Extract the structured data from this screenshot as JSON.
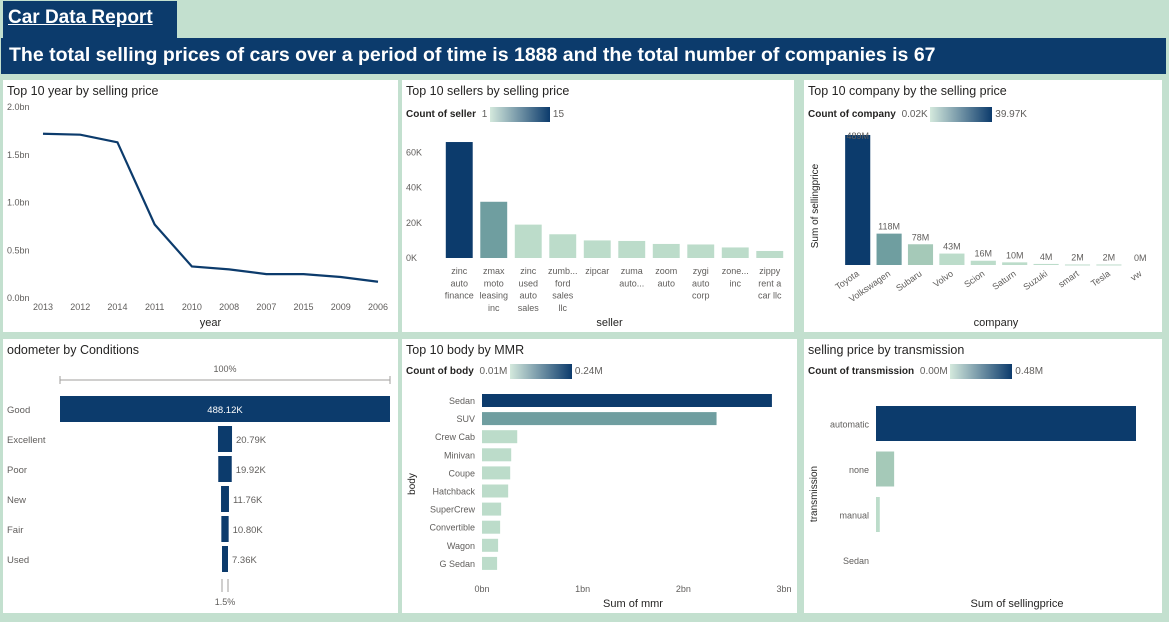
{
  "header": {
    "title": "Car Data Report",
    "banner": "The total selling prices of cars over a period of time is 1888 and the total number of companies is 67"
  },
  "colors": {
    "navy": "#0c3b6c",
    "mid": "#6f9ea0",
    "light": "#bcdcca",
    "bg": "#c3e0cf"
  },
  "panels": {
    "year": {
      "title": "Top 10 year by selling price"
    },
    "sellers": {
      "title": "Top 10 sellers by selling price",
      "legend_label": "Count of seller",
      "legend_min": "1",
      "legend_max": "15"
    },
    "company": {
      "title": "Top 10 company by the selling price",
      "legend_label": "Count of company",
      "legend_min": "0.02K",
      "legend_max": "39.97K"
    },
    "odometer": {
      "title": "odometer by Conditions"
    },
    "body": {
      "title": "Top 10 body by MMR",
      "legend_label": "Count of body",
      "legend_min": "0.01M",
      "legend_max": "0.24M"
    },
    "transmission": {
      "title": "selling price by transmission",
      "legend_label": "Count of transmission",
      "legend_min": "0.00M",
      "legend_max": "0.48M"
    }
  },
  "chart_data": [
    {
      "id": "year",
      "type": "line",
      "title": "Top 10 year by selling price",
      "xlabel": "year",
      "ylabel": "",
      "categories": [
        "2013",
        "2012",
        "2014",
        "2011",
        "2010",
        "2008",
        "2007",
        "2015",
        "2009",
        "2006"
      ],
      "values": [
        1.72,
        1.71,
        1.63,
        0.77,
        0.33,
        0.3,
        0.25,
        0.25,
        0.22,
        0.17
      ],
      "ylim": [
        0,
        2.0
      ],
      "yticks": [
        "0.0bn",
        "0.5bn",
        "1.0bn",
        "1.5bn",
        "2.0bn"
      ],
      "color": "#0c3b6c"
    },
    {
      "id": "sellers",
      "type": "bar",
      "title": "Top 10 sellers by selling price",
      "xlabel": "seller",
      "categories": [
        "zinc auto finance",
        "zmax moto leasing inc",
        "zinc used auto sales",
        "zumb... ford sales llc",
        "zipcar",
        "zuma auto...",
        "zoom auto",
        "zygi auto corp",
        "zone... inc",
        "zippy rent a car llc"
      ],
      "category_lines": [
        [
          "zinc",
          "auto",
          "finance"
        ],
        [
          "zmax",
          "moto",
          "leasing",
          "inc"
        ],
        [
          "zinc",
          "used",
          "auto",
          "sales"
        ],
        [
          "zumb...",
          "ford",
          "sales",
          "llc"
        ],
        [
          "zipcar"
        ],
        [
          "zuma",
          "auto..."
        ],
        [
          "zoom",
          "auto"
        ],
        [
          "zygi",
          "auto",
          "corp"
        ],
        [
          "zone...",
          "inc"
        ],
        [
          "zippy",
          "rent a",
          "car llc"
        ]
      ],
      "values": [
        66000,
        32000,
        19000,
        13500,
        10000,
        9700,
        8000,
        7700,
        6000,
        4000
      ],
      "ylim": [
        0,
        70000
      ],
      "yticks": [
        "0K",
        "20K",
        "40K",
        "60K"
      ],
      "colors": [
        "#0c3b6c",
        "#6f9ea0",
        "#bcdcca",
        "#bcdcca",
        "#bcdcca",
        "#bcdcca",
        "#bcdcca",
        "#bcdcca",
        "#bcdcca",
        "#bcdcca"
      ]
    },
    {
      "id": "company",
      "type": "bar",
      "title": "Top 10 company by the selling price",
      "xlabel": "company",
      "ylabel": "Sum of sellingprice",
      "categories": [
        "Toyota",
        "Volkswagen",
        "Subaru",
        "Volvo",
        "Scion",
        "Saturn",
        "Suzuki",
        "smart",
        "Tesla",
        "vw"
      ],
      "values": [
        489,
        118,
        78,
        43,
        16,
        10,
        4,
        2,
        2,
        0
      ],
      "data_labels": [
        "489M",
        "118M",
        "78M",
        "43M",
        "16M",
        "10M",
        "4M",
        "2M",
        "2M",
        "0M"
      ],
      "colors": [
        "#0c3b6c",
        "#6f9ea0",
        "#a5c9b8",
        "#bcdcca",
        "#bcdcca",
        "#bcdcca",
        "#bcdcca",
        "#bcdcca",
        "#bcdcca",
        "#bcdcca"
      ]
    },
    {
      "id": "odometer",
      "type": "bar",
      "orientation": "horizontal",
      "title": "odometer by Conditions",
      "categories": [
        "Good",
        "Excellent",
        "Poor",
        "New",
        "Fair",
        "Used"
      ],
      "values": [
        488.12,
        20.79,
        19.92,
        11.76,
        10.8,
        7.36
      ],
      "data_labels": [
        "488.12K",
        "20.79K",
        "19.92K",
        "11.76K",
        "10.80K",
        "7.36K"
      ],
      "top_label": "100%",
      "bottom_label": "1.5%",
      "color": "#0c3b6c"
    },
    {
      "id": "body",
      "type": "bar",
      "orientation": "horizontal",
      "title": "Top 10 body by MMR",
      "xlabel": "Sum of mmr",
      "ylabel": "body",
      "categories": [
        "Sedan",
        "SUV",
        "Crew Cab",
        "Minivan",
        "Coupe",
        "Hatchback",
        "SuperCrew",
        "Convertible",
        "Wagon",
        "G Sedan"
      ],
      "values": [
        2.88,
        2.33,
        0.35,
        0.29,
        0.28,
        0.26,
        0.19,
        0.18,
        0.16,
        0.15
      ],
      "xlim": [
        0,
        3
      ],
      "xticks": [
        "0bn",
        "1bn",
        "2bn",
        "3bn"
      ],
      "colors": [
        "#0c3b6c",
        "#6f9ea0",
        "#bcdcca",
        "#bcdcca",
        "#bcdcca",
        "#bcdcca",
        "#bcdcca",
        "#bcdcca",
        "#bcdcca",
        "#bcdcca"
      ]
    },
    {
      "id": "transmission",
      "type": "bar",
      "orientation": "horizontal",
      "title": "selling price by transmission",
      "xlabel": "Sum of sellingprice",
      "ylabel": "transmission",
      "categories": [
        "automatic",
        "none",
        "manual",
        "Sedan"
      ],
      "values": [
        1.72,
        0.12,
        0.025,
        0.0
      ],
      "colors": [
        "#0c3b6c",
        "#a5c9b8",
        "#bcdcca",
        "#bcdcca"
      ]
    }
  ]
}
